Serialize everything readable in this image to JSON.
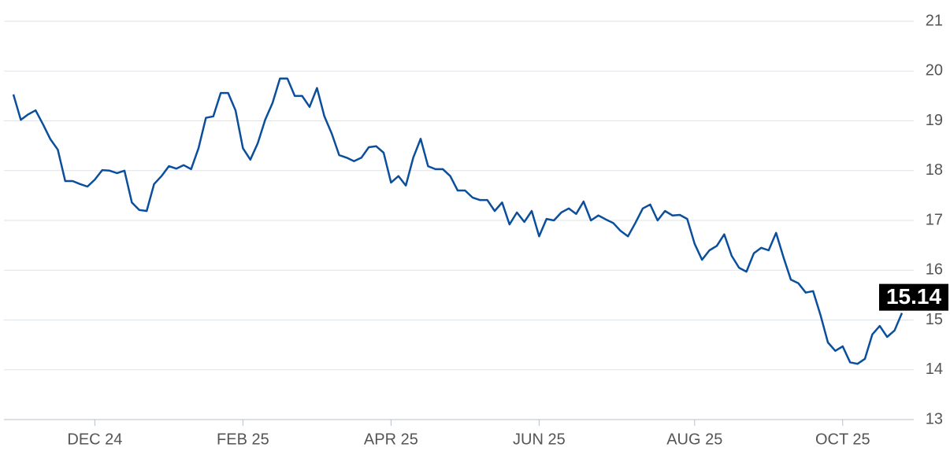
{
  "chart_data": {
    "type": "line",
    "categories": [
      null,
      null,
      null,
      null,
      null,
      null,
      null,
      null,
      null,
      null,
      null,
      "DEC 24",
      null,
      null,
      null,
      null,
      null,
      null,
      null,
      null,
      null,
      null,
      null,
      null,
      null,
      null,
      null,
      null,
      null,
      null,
      null,
      "FEB 25",
      null,
      null,
      null,
      null,
      null,
      null,
      null,
      null,
      null,
      null,
      null,
      null,
      null,
      null,
      null,
      null,
      null,
      null,
      null,
      "APR 25",
      null,
      null,
      null,
      null,
      null,
      null,
      null,
      null,
      null,
      null,
      null,
      null,
      null,
      null,
      null,
      null,
      null,
      null,
      null,
      "JUN 25",
      null,
      null,
      null,
      null,
      null,
      null,
      null,
      null,
      null,
      null,
      null,
      null,
      null,
      null,
      null,
      null,
      null,
      null,
      null,
      null,
      "AUG 25",
      null,
      null,
      null,
      null,
      null,
      null,
      null,
      null,
      null,
      null,
      null,
      null,
      null,
      null,
      null,
      null,
      null,
      null,
      null,
      "OCT 25",
      null,
      null,
      null,
      null,
      null,
      null,
      null,
      null
    ],
    "series": [
      {
        "color": "#0b4f9c",
        "values": [
          19.53,
          19.02,
          19.13,
          19.21,
          18.93,
          18.63,
          18.42,
          17.79,
          17.79,
          17.73,
          17.68,
          17.82,
          18.01,
          18.0,
          17.95,
          18.0,
          17.36,
          17.21,
          17.19,
          17.73,
          17.89,
          18.09,
          18.04,
          18.11,
          18.03,
          18.45,
          19.06,
          19.09,
          19.56,
          19.56,
          19.21,
          18.45,
          18.22,
          18.55,
          19.02,
          19.36,
          19.85,
          19.85,
          19.5,
          19.5,
          19.28,
          19.66,
          19.09,
          18.74,
          18.31,
          18.26,
          18.19,
          18.26,
          18.47,
          18.49,
          18.36,
          17.76,
          17.89,
          17.7,
          18.26,
          18.64,
          18.09,
          18.03,
          18.03,
          17.89,
          17.6,
          17.6,
          17.46,
          17.41,
          17.41,
          17.19,
          17.36,
          16.92,
          17.16,
          16.97,
          17.19,
          16.68,
          17.03,
          17.0,
          17.16,
          17.24,
          17.13,
          17.38,
          17.0,
          17.1,
          17.02,
          16.95,
          16.79,
          16.68,
          16.95,
          17.24,
          17.32,
          17.0,
          17.19,
          17.1,
          17.11,
          17.03,
          16.53,
          16.21,
          16.4,
          16.49,
          16.72,
          16.29,
          16.05,
          15.97,
          16.34,
          16.45,
          16.4,
          16.75,
          16.26,
          15.81,
          15.74,
          15.55,
          15.58,
          15.1,
          14.55,
          14.38,
          14.47,
          14.15,
          14.12,
          14.22,
          14.71,
          14.88,
          14.66,
          14.79,
          15.14
        ]
      }
    ],
    "ylim": [
      13,
      21
    ],
    "yticks": [
      13,
      14,
      15,
      16,
      17,
      18,
      19,
      20,
      21
    ],
    "grid": true
  }
}
